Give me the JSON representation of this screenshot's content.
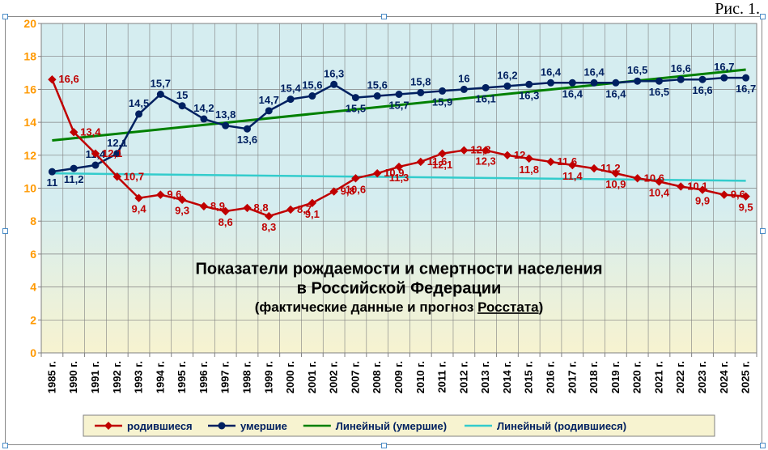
{
  "figure_label": "Рис. 1.",
  "chart": {
    "type": "line",
    "background_top": "#d5edf0",
    "background_bottom": "#f7f3d0",
    "grid_color": "#808080",
    "axis_color": "#808080",
    "ylim": [
      0,
      20
    ],
    "ytick_step": 2,
    "ytick_color": "#ff9900",
    "ytick_fontsize": 14,
    "xtick_fontsize": 13,
    "title_line1": "Показатели рождаемости и смертности населения",
    "title_line2": "в Российской Федерации",
    "title_line3_pre": "(фактические данные и прогноз ",
    "title_line3_link": "Росстата",
    "title_line3_post": ")",
    "title_fontsize1": 20,
    "title_fontsize2": 20,
    "title_fontsize3": 17,
    "categories": [
      "1985 г.",
      "1990 г.",
      "1991 г.",
      "1992 г.",
      "1993 г.",
      "1994 г.",
      "1995 г.",
      "1996 г.",
      "1997 г.",
      "1998 г.",
      "1999 г.",
      "2000 г.",
      "2001 г.",
      "2002 г.",
      "2007 г.",
      "2008 г.",
      "2009 г.",
      "2010 г.",
      "2011 г.",
      "2012 г.",
      "2013 г.",
      "2014 г.",
      "2015 г.",
      "2016 г.",
      "2017 г.",
      "2018 г.",
      "2019 г.",
      "2020 г.",
      "2021 г.",
      "2022 г.",
      "2023 г.",
      "2024 г.",
      "2025 г."
    ],
    "series": {
      "births": {
        "name": "родившиеся",
        "values": [
          16.6,
          13.4,
          12.1,
          10.7,
          9.4,
          9.6,
          9.3,
          8.9,
          8.6,
          8.8,
          8.3,
          8.7,
          9.1,
          9.8,
          10.6,
          10.9,
          11.3,
          11.6,
          12.1,
          12.3,
          12.3,
          12.0,
          11.8,
          11.6,
          11.4,
          11.2,
          10.9,
          10.6,
          10.4,
          10.1,
          9.9,
          9.6,
          9.5
        ],
        "color": "#c00000",
        "marker": "diamond",
        "marker_size": 9,
        "line_width": 2.5,
        "label_positions": [
          "r",
          "r",
          "r",
          "r",
          "b",
          "r",
          "b",
          "r",
          "b",
          "r",
          "b",
          "r",
          "b",
          "r",
          "b",
          "r",
          "b",
          "r",
          "b",
          "r",
          "b",
          "r",
          "b",
          "r",
          "b",
          "r",
          "b",
          "r",
          "b",
          "r",
          "b",
          "r",
          "b"
        ]
      },
      "deaths": {
        "name": "умершие",
        "values": [
          11.0,
          11.2,
          11.4,
          12.1,
          14.5,
          15.7,
          15.0,
          14.2,
          13.8,
          13.6,
          14.7,
          15.4,
          15.6,
          16.3,
          15.5,
          15.6,
          15.7,
          15.8,
          15.9,
          16.0,
          16.1,
          16.2,
          16.3,
          16.4,
          16.4,
          16.4,
          16.4,
          16.5,
          16.5,
          16.6,
          16.6,
          16.7,
          16.7
        ],
        "color": "#002060",
        "marker": "circle",
        "marker_size": 8,
        "line_width": 2.5,
        "label_positions": [
          "b",
          "b",
          "t",
          "t",
          "t",
          "t",
          "t",
          "t",
          "t",
          "b",
          "t",
          "t",
          "t",
          "t",
          "b",
          "t",
          "b",
          "t",
          "b",
          "t",
          "b",
          "t",
          "b",
          "t",
          "b",
          "t",
          "b",
          "t",
          "b",
          "t",
          "b",
          "t",
          "b"
        ]
      }
    },
    "trendlines": {
      "deaths_trend": {
        "name": "Линейный (умершие)",
        "color": "#008000",
        "line_width": 3,
        "y_start": 12.9,
        "y_end": 17.2
      },
      "births_trend": {
        "name": "Линейный (родившиеся)",
        "color": "#33cccc",
        "line_width": 2.5,
        "y_start": 10.9,
        "y_end": 10.45
      }
    },
    "legend": {
      "background": "#f7f3d0",
      "border_color": "#808080",
      "items": [
        {
          "key": "births",
          "label": "родившиеся",
          "shape": "diamond",
          "color": "#c00000"
        },
        {
          "key": "deaths",
          "label": "умершие",
          "shape": "circle",
          "color": "#002060"
        },
        {
          "key": "deaths_trend",
          "label": "Линейный (умершие)",
          "shape": "line",
          "color": "#008000"
        },
        {
          "key": "births_trend",
          "label": "Линейный (родившиеся)",
          "shape": "line",
          "color": "#33cccc"
        }
      ]
    },
    "selection_handles": true,
    "handle_border": "#4a8cc7",
    "handle_fill": "#ffffff"
  }
}
